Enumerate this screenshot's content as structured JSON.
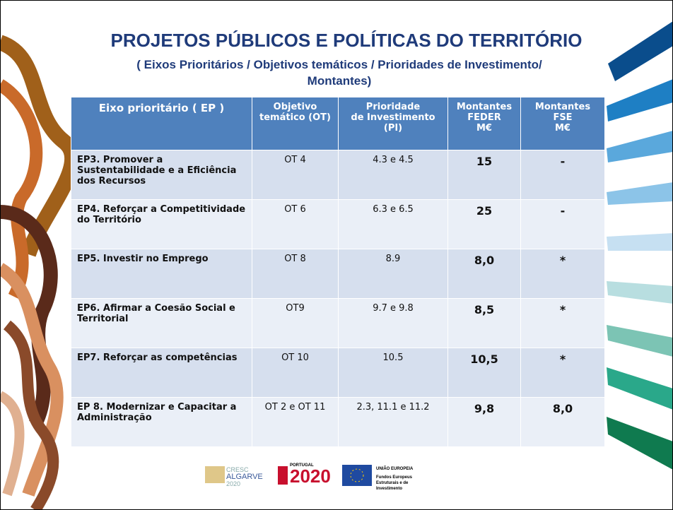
{
  "header": {
    "title": "PROJETOS PÚBLICOS E POLÍTICAS DO TERRITÓRIO",
    "subtitle": [
      "( Eixos Prioritários / Objetivos temáticos / Prioridades de Investimento/",
      "Montantes)"
    ]
  },
  "table": {
    "columns": [
      [
        "Eixo prioritário ( EP )"
      ],
      [
        "Objetivo",
        "temático (OT)"
      ],
      [
        "Prioridade",
        "de Investimento",
        "(PI)"
      ],
      [
        "Montantes",
        "FEDER",
        "M€"
      ],
      [
        "Montantes",
        "FSE",
        "M€"
      ]
    ],
    "rows": [
      [
        "EP3.  Promover a Sustentabilidade e a Eficiência dos Recursos",
        "OT 4",
        "4.3 e 4.5",
        "15",
        "-"
      ],
      [
        "EP4.  Reforçar a Competitividade do Território",
        "OT 6",
        "6.3 e 6.5",
        "25",
        "-"
      ],
      [
        "EP5.  Investir no Emprego",
        "OT 8",
        "8.9",
        "8,0",
        "*"
      ],
      [
        "EP6.  Afirmar a Coesão Social e Territorial",
        "OT9",
        "9.7 e 9.8",
        "8,5",
        "*"
      ],
      [
        "EP7.  Reforçar as competências",
        "OT 10",
        "10.5",
        "10,5",
        "*"
      ],
      [
        "EP 8.  Modernizar e Capacitar a Administração",
        "OT 2 e OT 11",
        "2.3, 11.1 e 11.2",
        "9,8",
        "8,0"
      ]
    ]
  },
  "logos": {
    "cresc": [
      "CRESC",
      "ALGARVE",
      "2020"
    ],
    "portugal": [
      "PORTUGAL",
      "2020"
    ],
    "eu": [
      "UNIÃO EUROPEIA",
      "Fundos Europeus",
      "Estruturais e de",
      "Investimento"
    ]
  }
}
